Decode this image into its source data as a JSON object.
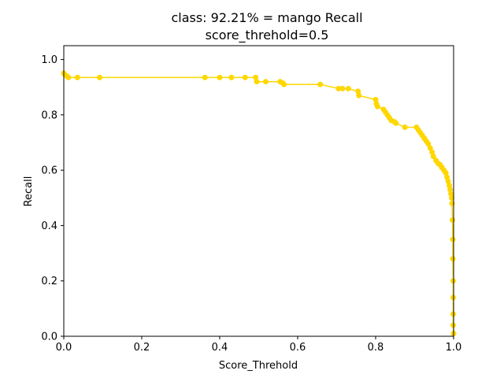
{
  "chart_data": {
    "type": "line",
    "title_lines": [
      "class: 92.21% = mango Recall",
      "score_threhold=0.5"
    ],
    "xlabel": "Score_Threhold",
    "ylabel": "Recall",
    "xlim": [
      0.0,
      1.0
    ],
    "ylim": [
      0.0,
      1.05
    ],
    "xticks": [
      0.0,
      0.2,
      0.4,
      0.6,
      0.8,
      1.0
    ],
    "xtick_labels": [
      "0.0",
      "0.2",
      "0.4",
      "0.6",
      "0.8",
      "1.0"
    ],
    "yticks": [
      0.0,
      0.2,
      0.4,
      0.6,
      0.8,
      1.0
    ],
    "ytick_labels": [
      "0.0",
      "0.2",
      "0.4",
      "0.6",
      "0.8",
      "1.0"
    ],
    "grid": false,
    "legend": "none",
    "series": [
      {
        "color": "#FFD700",
        "marker": "circle",
        "x": [
          0.0,
          0.003,
          0.008,
          0.012,
          0.035,
          0.092,
          0.362,
          0.4,
          0.43,
          0.465,
          0.492,
          0.495,
          0.518,
          0.555,
          0.562,
          0.565,
          0.658,
          0.705,
          0.715,
          0.73,
          0.755,
          0.757,
          0.8,
          0.802,
          0.805,
          0.82,
          0.825,
          0.83,
          0.835,
          0.84,
          0.848,
          0.852,
          0.875,
          0.905,
          0.91,
          0.915,
          0.92,
          0.925,
          0.93,
          0.935,
          0.94,
          0.945,
          0.948,
          0.955,
          0.96,
          0.965,
          0.97,
          0.975,
          0.98,
          0.983,
          0.986,
          0.989,
          0.991,
          0.993,
          0.995,
          0.996,
          0.997,
          0.998,
          0.998,
          0.999,
          0.999,
          0.999,
          0.999,
          1.0
        ],
        "y": [
          0.95,
          0.945,
          0.94,
          0.935,
          0.935,
          0.935,
          0.935,
          0.935,
          0.935,
          0.935,
          0.935,
          0.92,
          0.92,
          0.92,
          0.915,
          0.91,
          0.91,
          0.895,
          0.895,
          0.895,
          0.885,
          0.87,
          0.855,
          0.84,
          0.83,
          0.82,
          0.81,
          0.8,
          0.79,
          0.78,
          0.775,
          0.77,
          0.755,
          0.755,
          0.745,
          0.735,
          0.725,
          0.715,
          0.705,
          0.695,
          0.68,
          0.665,
          0.65,
          0.635,
          0.625,
          0.62,
          0.61,
          0.6,
          0.59,
          0.575,
          0.56,
          0.545,
          0.53,
          0.515,
          0.5,
          0.48,
          0.42,
          0.35,
          0.28,
          0.2,
          0.14,
          0.08,
          0.04,
          0.01
        ]
      }
    ]
  }
}
